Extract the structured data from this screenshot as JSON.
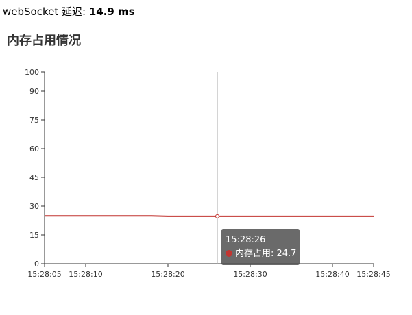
{
  "header": {
    "latency_label": "webSocket 延迟: ",
    "latency_value": "14.9 ms"
  },
  "chart_title": "内存占用情况",
  "tooltip": {
    "time": "15:28:26",
    "series_label": "内存占用: 24.7"
  },
  "chart_data": {
    "type": "line",
    "title": "内存占用情况",
    "xlabel": "",
    "ylabel": "",
    "xlim": [
      "15:28:05",
      "15:28:45"
    ],
    "ylim": [
      0,
      100
    ],
    "x_ticks": [
      "15:28:05",
      "15:28:10",
      "15:28:20",
      "15:28:30",
      "15:28:40",
      "15:28:45"
    ],
    "y_ticks": [
      0,
      15,
      30,
      45,
      60,
      75,
      90,
      100
    ],
    "grid": false,
    "series": [
      {
        "name": "内存占用",
        "color": "#c23531",
        "points": [
          {
            "x": "15:28:05",
            "y": 24.9
          },
          {
            "x": "15:28:18",
            "y": 24.9
          },
          {
            "x": "15:28:20",
            "y": 24.7
          },
          {
            "x": "15:28:26",
            "y": 24.7
          },
          {
            "x": "15:28:45",
            "y": 24.7
          }
        ]
      }
    ],
    "highlight": {
      "x": "15:28:26",
      "y": 24.7
    }
  }
}
